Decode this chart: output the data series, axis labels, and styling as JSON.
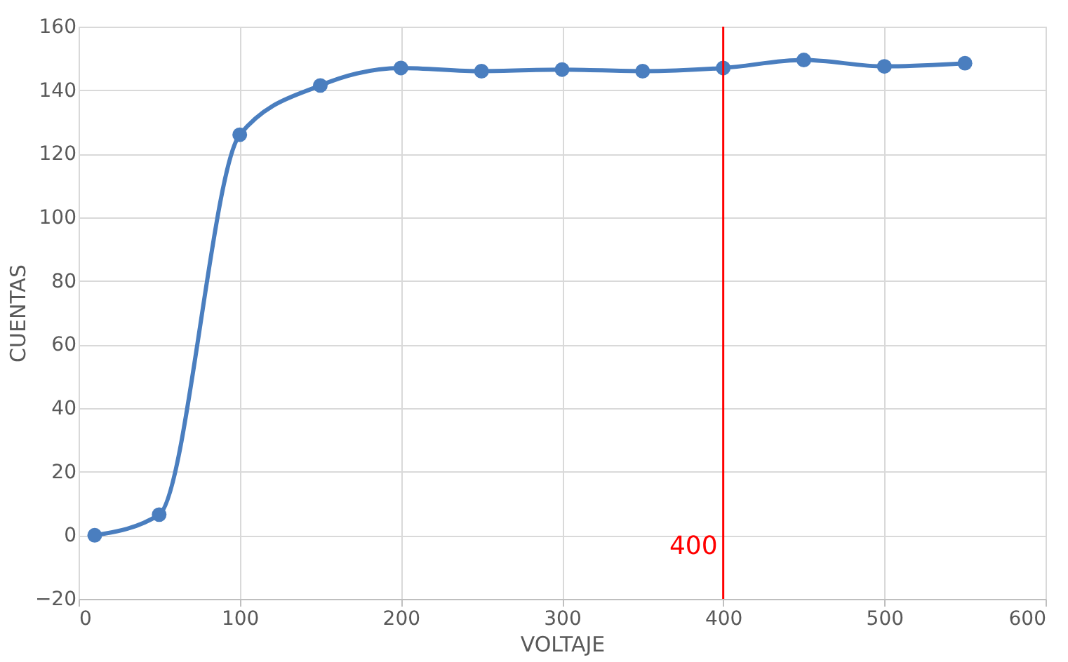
{
  "chart_data": {
    "type": "line",
    "xlabel": "VOLTAJE",
    "ylabel": "CUENTAS",
    "x": [
      10,
      50,
      100,
      150,
      200,
      250,
      300,
      350,
      400,
      450,
      500,
      550
    ],
    "series": [
      {
        "color": "#4a7ebf",
        "values": [
          0,
          6.5,
          126,
          141.5,
          147,
          146,
          146.5,
          146,
          147,
          149.5,
          147.5,
          148.5
        ]
      }
    ],
    "xlim": [
      0,
      600
    ],
    "xticks": [
      0,
      100,
      200,
      300,
      400,
      500,
      600
    ],
    "ylim": [
      -20,
      160
    ],
    "yticks": [
      -20,
      0,
      20,
      40,
      60,
      80,
      100,
      120,
      140,
      160
    ],
    "grid": true,
    "marker": "circle",
    "line_style": "solid",
    "ref_lines": [
      {
        "axis": "x",
        "value": 400,
        "label": "400",
        "color": "#ff0000"
      }
    ]
  }
}
